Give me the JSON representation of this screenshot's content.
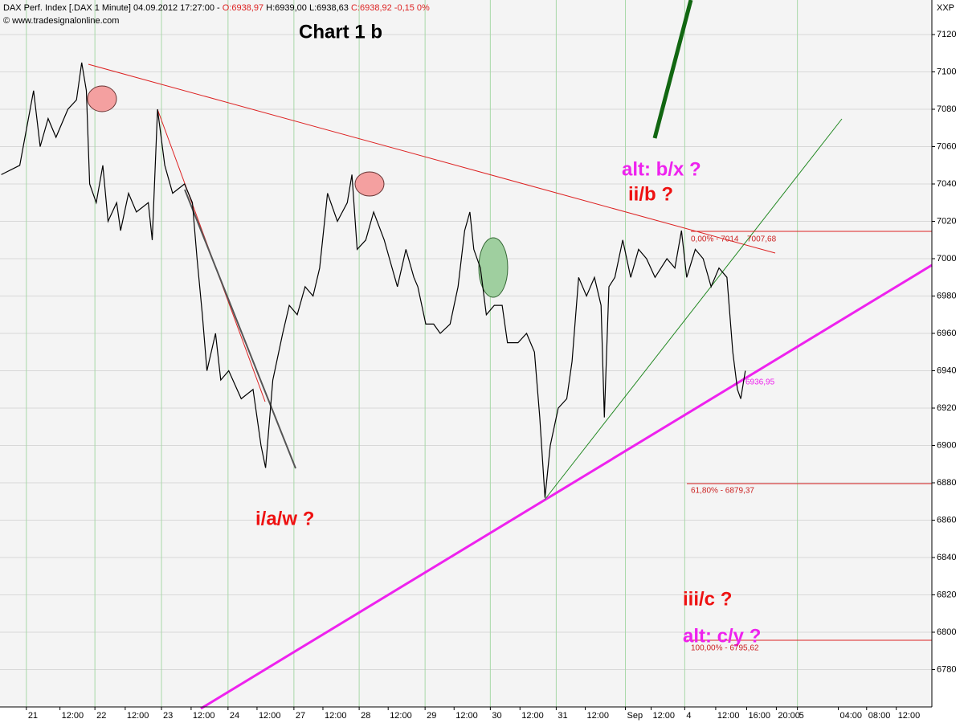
{
  "chart_data": {
    "type": "line",
    "title": "Chart 1 b",
    "header": [
      "DAX Perf. Index [.DAX  1 Minute] 04.09.2012 17:27:00 - ",
      "O:6938,97",
      " H:6939,00 L:6938,63 ",
      "C:6938,92 -0,15 0%"
    ],
    "copyright": "© www.tradesignalonline.com",
    "axis_label": "XXP",
    "annotations": [
      "alt: b/x ?",
      "ii/b ?",
      "i/a/w ?",
      "iii/c ?",
      "alt: c/y ?"
    ],
    "fib_labels": [
      "0,00% - 7014",
      "7007,68",
      "61,80% - 6879,37",
      "100,00% - 6795,62",
      "6936,95"
    ],
    "x": [
      -0.38,
      -0.1,
      0.11,
      0.21,
      0.33,
      0.45,
      0.63,
      0.76,
      0.84,
      0.91,
      0.96,
      1.06,
      1.16,
      1.24,
      1.37,
      1.43,
      1.55,
      1.67,
      1.85,
      1.91,
      1.99,
      2.1,
      2.22,
      2.4,
      2.52,
      2.59,
      2.67,
      2.74,
      2.87,
      2.95,
      3.07,
      3.26,
      3.44,
      3.56,
      3.63,
      3.74,
      3.89,
      3.99,
      4.11,
      4.23,
      4.35,
      4.45,
      4.57,
      4.72,
      4.87,
      4.94,
      5.02,
      5.15,
      5.27,
      5.43,
      5.51,
      5.63,
      5.76,
      5.88,
      5.94,
      6.06,
      6.18,
      6.28,
      6.43,
      6.55,
      6.65,
      6.73,
      6.79,
      6.89,
      6.98,
      7.1,
      7.22,
      7.3,
      7.46,
      7.59,
      7.71,
      7.79,
      7.87,
      7.95,
      8.07,
      8.2,
      8.28,
      8.38,
      8.5,
      8.62,
      8.72,
      8.77,
      8.84,
      8.93,
      9.05,
      9.17,
      9.29,
      9.41,
      9.54,
      9.72,
      9.84,
      9.94,
      10.02,
      10.15,
      10.27,
      10.39,
      10.51,
      10.63,
      10.72,
      10.79,
      10.84,
      10.91
    ],
    "series": [
      {
        "name": "DAX",
        "color": "#000000",
        "values": [
          7045,
          7050,
          7090,
          7060,
          7075,
          7065,
          7080,
          7085,
          7105,
          7090,
          7040,
          7030,
          7050,
          7020,
          7030,
          7015,
          7035,
          7025,
          7030,
          7010,
          7080,
          7050,
          7035,
          7040,
          7030,
          7000,
          6970,
          6940,
          6960,
          6935,
          6940,
          6925,
          6930,
          6900,
          6888,
          6935,
          6960,
          6975,
          6970,
          6985,
          6980,
          6995,
          7035,
          7020,
          7030,
          7045,
          7005,
          7010,
          7025,
          7010,
          7000,
          6985,
          7005,
          6990,
          6985,
          6965,
          6965,
          6960,
          6965,
          6985,
          7015,
          7025,
          7005,
          6995,
          6970,
          6975,
          6975,
          6955,
          6955,
          6960,
          6950,
          6915,
          6872,
          6900,
          6920,
          6925,
          6945,
          6990,
          6980,
          6990,
          6975,
          6915,
          6985,
          6990,
          7010,
          6990,
          7005,
          7000,
          6990,
          7000,
          6995,
          7015,
          6990,
          7005,
          7000,
          6985,
          6995,
          6990,
          6950,
          6930,
          6925,
          6940
        ]
      }
    ],
    "xlim": [
      -0.4,
      13.74
    ],
    "ylim": [
      6760,
      7138.5
    ],
    "yticks": [
      6780,
      6800,
      6820,
      6840,
      6860,
      6880,
      6900,
      6920,
      6940,
      6960,
      6980,
      7000,
      7020,
      7040,
      7060,
      7080,
      7100,
      7120
    ],
    "xticks": [
      {
        "value": 0,
        "label": "21"
      },
      {
        "value": 0.51,
        "label": "12:00"
      },
      {
        "value": 1.04,
        "label": "22"
      },
      {
        "value": 1.5,
        "label": "12:00"
      },
      {
        "value": 2.05,
        "label": "23"
      },
      {
        "value": 2.5,
        "label": "12:00"
      },
      {
        "value": 3.06,
        "label": "24"
      },
      {
        "value": 3.5,
        "label": "12:00"
      },
      {
        "value": 4.06,
        "label": "27"
      },
      {
        "value": 4.5,
        "label": "12:00"
      },
      {
        "value": 5.05,
        "label": "28"
      },
      {
        "value": 5.49,
        "label": "12:00"
      },
      {
        "value": 6.05,
        "label": "29"
      },
      {
        "value": 6.49,
        "label": "12:00"
      },
      {
        "value": 7.04,
        "label": "30"
      },
      {
        "value": 7.49,
        "label": "12:00"
      },
      {
        "value": 8.04,
        "label": "31"
      },
      {
        "value": 8.48,
        "label": "12:00"
      },
      {
        "value": 9.09,
        "label": "Sep"
      },
      {
        "value": 9.48,
        "label": "12:00"
      },
      {
        "value": 9.99,
        "label": "4"
      },
      {
        "value": 10.46,
        "label": "12:00"
      },
      {
        "value": 10.93,
        "label": "16:00"
      },
      {
        "value": 11.38,
        "label": "20:00"
      },
      {
        "value": 11.7,
        "label": "5"
      },
      {
        "value": 12.32,
        "label": "04:00"
      },
      {
        "value": 12.75,
        "label": "08:00"
      },
      {
        "value": 13.2,
        "label": "12:00"
      }
    ],
    "grid": true
  }
}
